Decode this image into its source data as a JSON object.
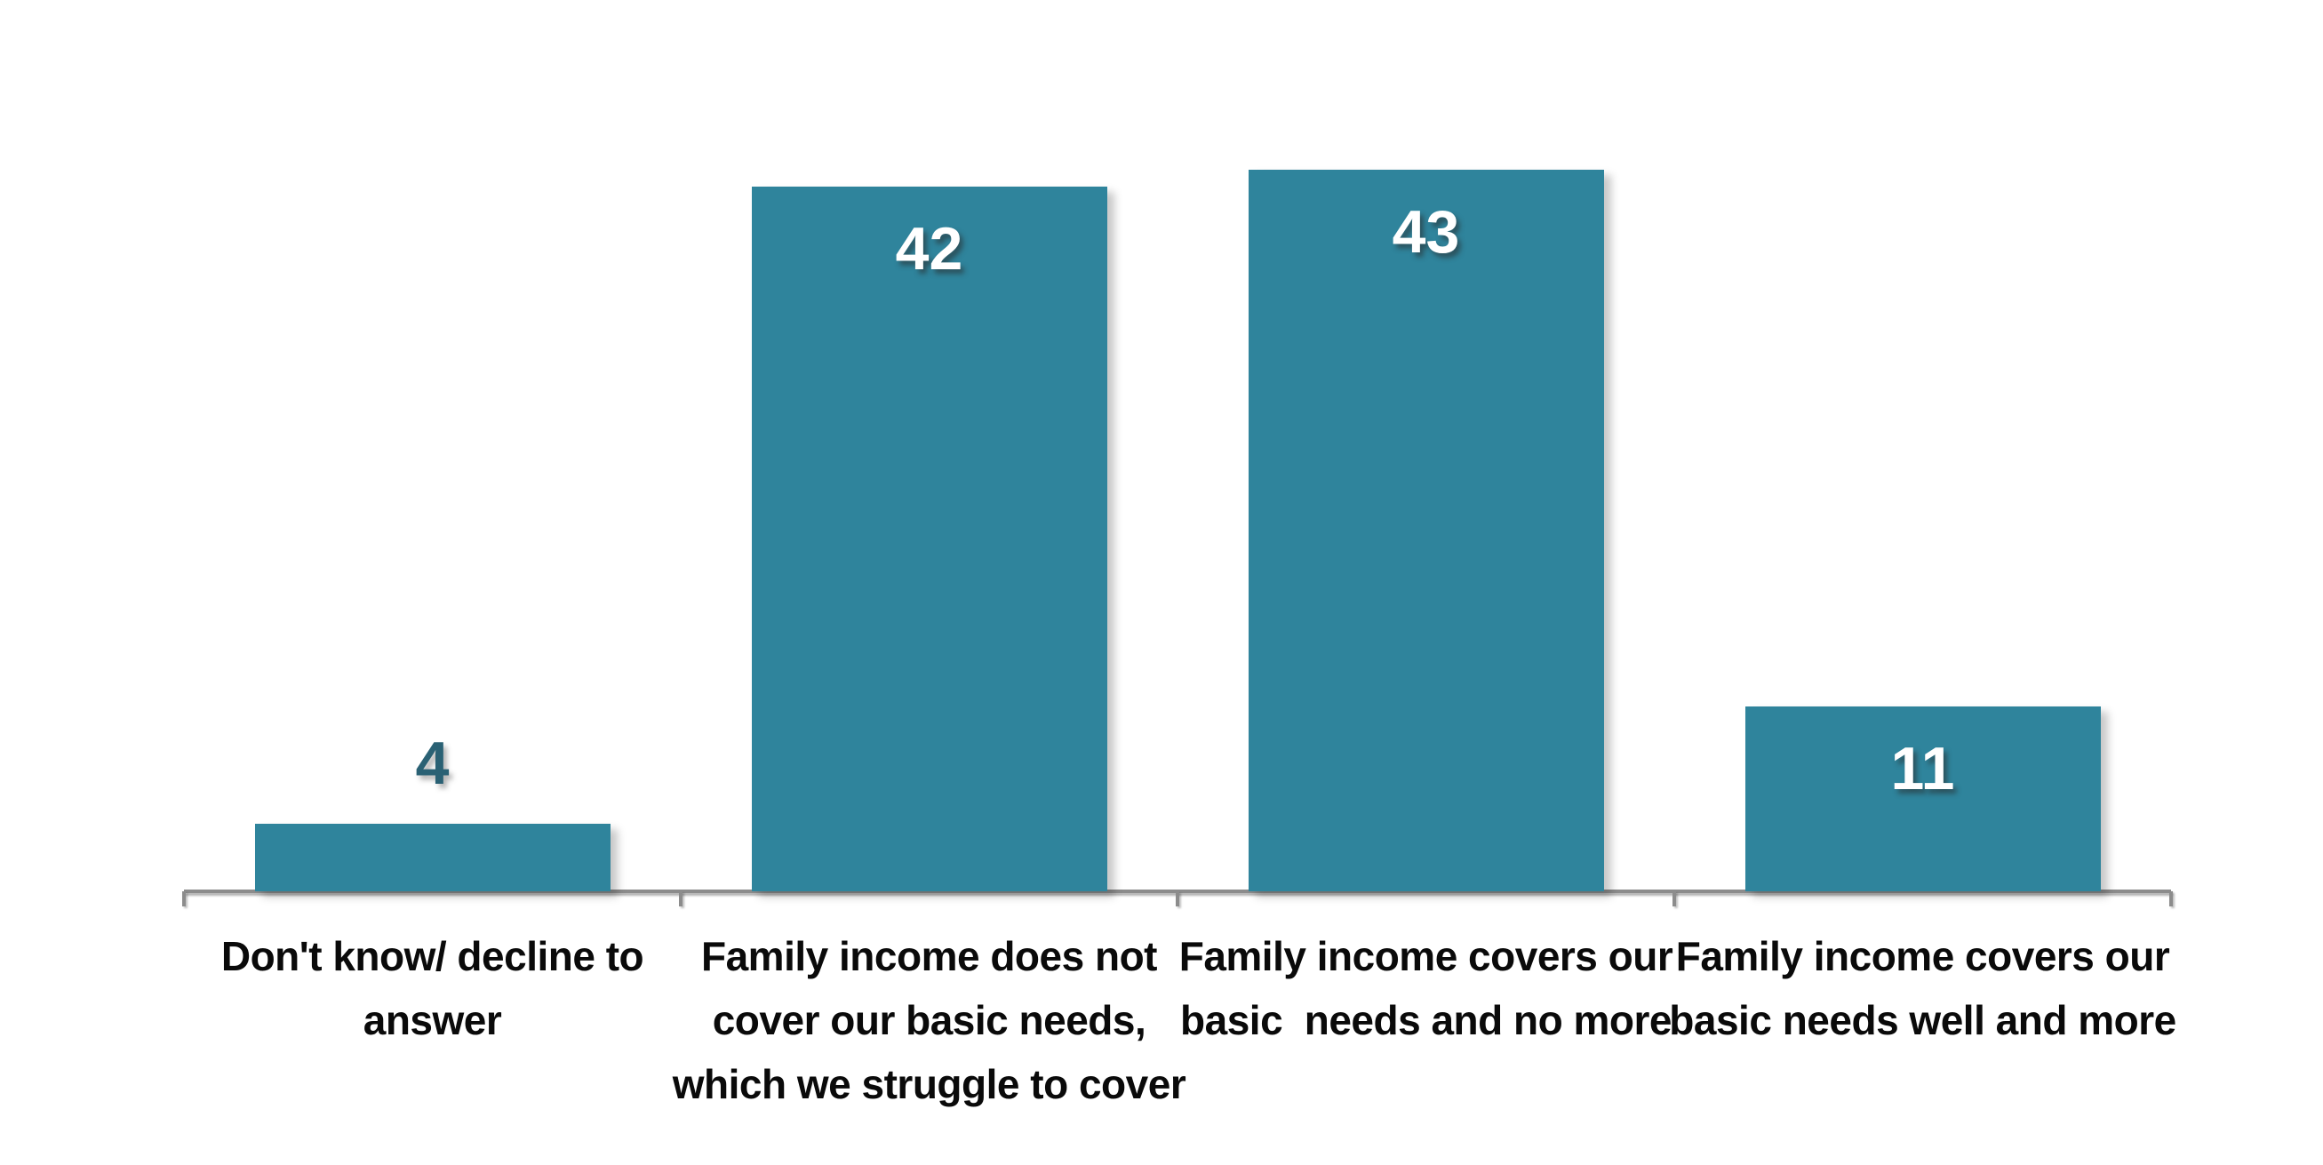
{
  "chart_data": {
    "type": "bar",
    "title": "",
    "xlabel": "",
    "ylabel": "",
    "categories": [
      "Don't know/ decline to answer",
      "Family income does not cover our basic needs, which we struggle to cover",
      "Family income covers our basic  needs and no more",
      "Family income covers our basic needs well and more"
    ],
    "category_lines": [
      "Don't know/ decline to\nanswer",
      "Family income does not\ncover our basic needs,\nwhich we struggle to cover",
      "Family income covers our\nbasic  needs and no more",
      "Family income covers our\nbasic needs well and more"
    ],
    "values": [
      4,
      42,
      43,
      11
    ],
    "data_labels": [
      "4",
      "42",
      "43",
      "11"
    ],
    "data_label_positions": [
      "outside",
      "inside",
      "inside",
      "inside"
    ],
    "ylim": [
      0,
      45
    ],
    "grid": false,
    "legend": "none",
    "colors": {
      "bar_fill": "#2F849C",
      "axis_line": "#8C8C8C",
      "data_label_inside": "#FFFFFF",
      "data_label_outside": "#2A6174",
      "category_label": "#0A0A0A"
    }
  }
}
